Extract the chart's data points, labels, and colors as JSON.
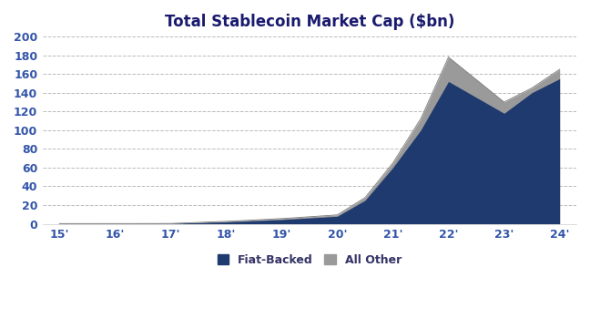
{
  "title": "Total Stablecoin Market Cap ($bn)",
  "title_fontsize": 12,
  "background_color": "#ffffff",
  "fiat_color": "#1f3a6e",
  "other_color": "#9a9a9a",
  "ylim": [
    0,
    200
  ],
  "yticks": [
    0,
    20,
    40,
    60,
    80,
    100,
    120,
    140,
    160,
    180,
    200
  ],
  "xtick_labels": [
    "15'",
    "16'",
    "17'",
    "18'",
    "19'",
    "20'",
    "21'",
    "22'",
    "23'",
    "24'"
  ],
  "x_positions": [
    0,
    1,
    2,
    3,
    4,
    5,
    6,
    7,
    8,
    9
  ],
  "fiat_backed": [
    0.2,
    0.2,
    0.3,
    2.0,
    4.5,
    8.0,
    25.0,
    60.0,
    100.0,
    152.0,
    118.0,
    140.0,
    155.0
  ],
  "total": [
    0.2,
    0.2,
    0.3,
    2.5,
    5.5,
    9.5,
    28.0,
    65.0,
    112.0,
    178.0,
    130.0,
    145.0,
    165.0
  ],
  "x_fine": [
    0,
    1,
    2,
    3,
    4,
    5,
    5.5,
    6.0,
    6.5,
    7,
    8,
    8.5,
    9
  ],
  "legend_fiat_label": "Fiat-Backed",
  "legend_other_label": "All Other",
  "tick_color": "#3355aa",
  "grid_color": "#aaaaaa"
}
